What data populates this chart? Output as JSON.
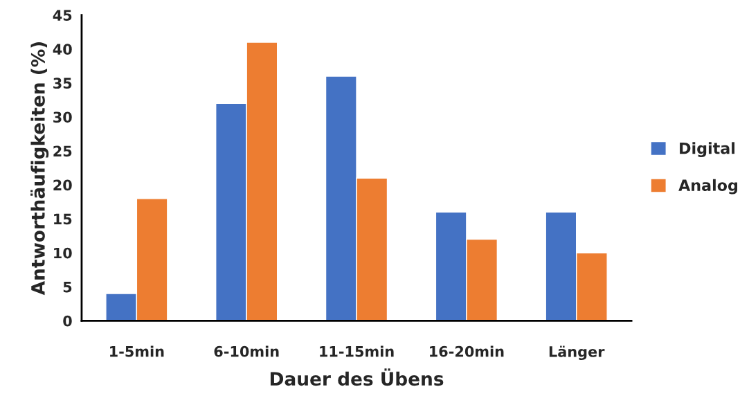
{
  "chart_data": {
    "type": "bar",
    "xlabel": "Dauer des Übens",
    "ylabel": "Antworthäufigkeiten (%)",
    "categories": [
      "1-5min",
      "6-10min",
      "11-15min",
      "16-20min",
      "Länger"
    ],
    "series": [
      {
        "name": "Digital",
        "color": "#4472c4",
        "values": [
          4,
          32,
          36,
          16,
          16
        ]
      },
      {
        "name": "Analog",
        "color": "#ed7d31",
        "values": [
          18,
          41,
          21,
          12,
          10
        ]
      }
    ],
    "ylim": [
      0,
      45
    ],
    "yticks": [
      0,
      5,
      10,
      15,
      20,
      25,
      30,
      35,
      40,
      45
    ],
    "grid": false,
    "legend": "right"
  }
}
